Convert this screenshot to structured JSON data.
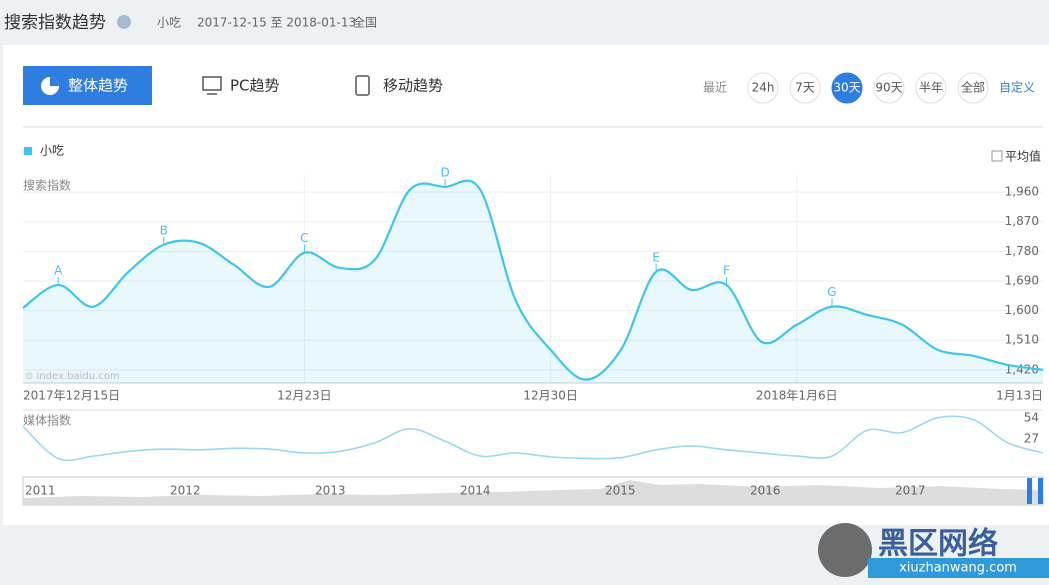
{
  "header": {
    "title": "搜索指数趋势",
    "keyword": "小吃",
    "period": "2017-12-15 至 2018-01-13",
    "region": "全国"
  },
  "tabs": [
    "整体趋势",
    "PC趋势",
    "移动趋势"
  ],
  "range": {
    "label": "最近",
    "options": [
      {
        "label": "24h",
        "selected": false
      },
      {
        "label": "7天",
        "selected": false
      },
      {
        "label": "30天",
        "selected": true
      },
      {
        "label": "90天",
        "selected": false
      },
      {
        "label": "半年",
        "selected": false
      },
      {
        "label": "全部",
        "selected": false
      }
    ],
    "custom": "自定义"
  },
  "average": "平均值",
  "chart_data": [
    {
      "type": "line",
      "y_label": "搜索指数",
      "watermark": "⊙ index.baidu.com",
      "categories": [
        "2017年12月15日",
        null,
        null,
        null,
        null,
        null,
        null,
        null,
        "12月23日",
        null,
        null,
        null,
        null,
        null,
        null,
        "12月30日",
        null,
        null,
        null,
        null,
        null,
        null,
        "2018年1月6日",
        null,
        null,
        null,
        null,
        null,
        null,
        "1月13日"
      ],
      "series": [
        {
          "name": "小吃",
          "color": "#3ec5ef",
          "values": [
            1608,
            1678,
            1612,
            1718,
            1800,
            1806,
            1739,
            1672,
            1776,
            1730,
            1754,
            1967,
            1976,
            1967,
            1633,
            1481,
            1390,
            1481,
            1718,
            1663,
            1678,
            1505,
            1557,
            1612,
            1587,
            1557,
            1481,
            1463,
            1435,
            1420
          ]
        }
      ],
      "point_labels": [
        null,
        "A",
        null,
        null,
        "B",
        null,
        null,
        null,
        "C",
        null,
        null,
        null,
        "D",
        null,
        null,
        null,
        null,
        null,
        "E",
        null,
        "F",
        null,
        null,
        "G",
        null,
        null,
        null,
        null,
        null,
        null
      ],
      "ylim": [
        1380,
        2012
      ],
      "yticks": [
        {
          "value": 1420,
          "label": "1,420"
        },
        {
          "value": 1510,
          "label": "1,510"
        },
        {
          "value": 1600,
          "label": "1,600"
        },
        {
          "value": 1690,
          "label": "1,690"
        },
        {
          "value": 1780,
          "label": "1,780"
        },
        {
          "value": 1870,
          "label": "1,870"
        },
        {
          "value": 1960,
          "label": "1,960"
        }
      ],
      "grid": true
    },
    {
      "type": "line",
      "y_label": "媒体指数",
      "series": [
        {
          "color": "#97d9f3",
          "values": [
            43,
            2,
            5,
            11,
            14,
            13,
            15,
            14,
            9,
            11,
            22,
            40,
            24,
            5,
            9,
            4,
            2,
            3,
            13,
            18,
            13,
            9,
            5,
            5,
            38,
            35,
            54,
            52,
            22,
            9
          ]
        }
      ],
      "ylim": [
        0,
        64
      ],
      "yticks": [
        27,
        54
      ],
      "grid": false
    }
  ],
  "overview": {
    "years": [
      "2011",
      "2012",
      "2013",
      "2014",
      "2015",
      "2016",
      "2017"
    ]
  },
  "logo": {
    "name": "黑区网络",
    "site": "xiuzhanwang.com"
  }
}
